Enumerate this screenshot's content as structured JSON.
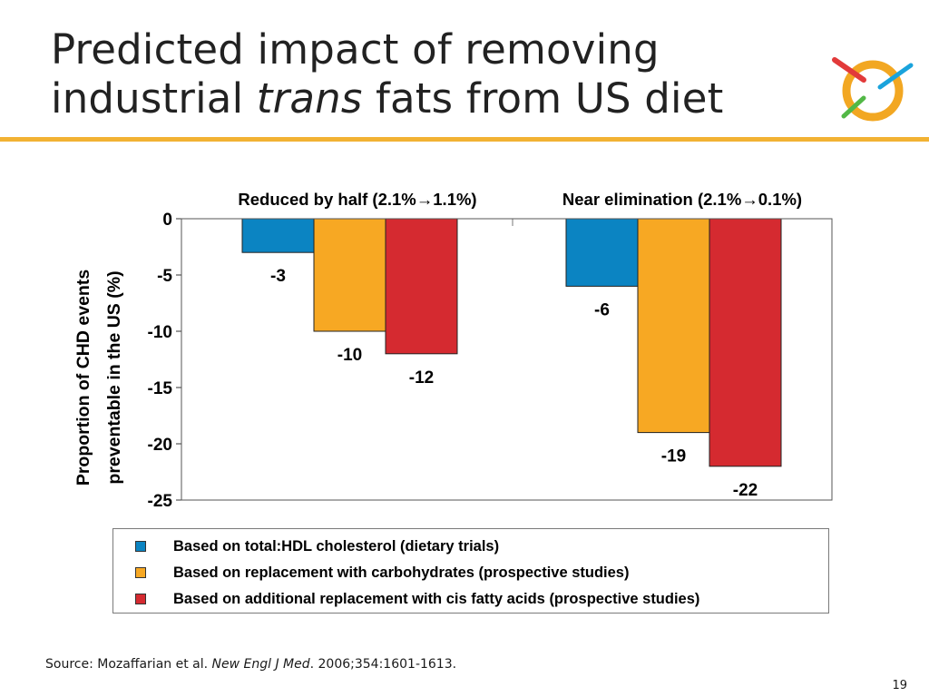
{
  "title": {
    "line1": "Predicted impact of removing",
    "line2_prefix": "industrial ",
    "line2_italic": "trans",
    "line2_suffix": " fats from US diet"
  },
  "colors": {
    "rule": "#f2b233",
    "series": [
      "#0b84c2",
      "#f7a823",
      "#d52a30"
    ],
    "logo_ring": "#f2a722",
    "logo_red": "#e23a3a",
    "logo_green": "#52b846",
    "logo_blue": "#1aa3dc"
  },
  "logo": {
    "icons": [
      "ring-logo-icon"
    ]
  },
  "chart_data": {
    "type": "bar",
    "group_labels": [
      "Reduced by half (2.1%→1.1%)",
      "Near elimination (2.1%→0.1%)"
    ],
    "ylabel_lines": [
      "Proportion of CHD events",
      "preventable in the US (%)"
    ],
    "ylim": [
      -25,
      0
    ],
    "yticks": [
      0,
      -5,
      -10,
      -15,
      -20,
      -25
    ],
    "grid": false,
    "legend_position": "bottom",
    "series": [
      {
        "name": "Based on total:HDL cholesterol (dietary trials)",
        "values": [
          -3,
          -6
        ]
      },
      {
        "name": "Based on replacement with carbohydrates (prospective studies)",
        "values": [
          -10,
          -19
        ]
      },
      {
        "name": "Based on additional replacement with cis fatty acids (prospective studies)",
        "values": [
          -12,
          -22
        ]
      }
    ]
  },
  "source": {
    "prefix": "Source: Mozaffarian et al. ",
    "journal": "New Engl J Med",
    "suffix": ". 2006;354:1601-1613."
  },
  "page_number": "19"
}
